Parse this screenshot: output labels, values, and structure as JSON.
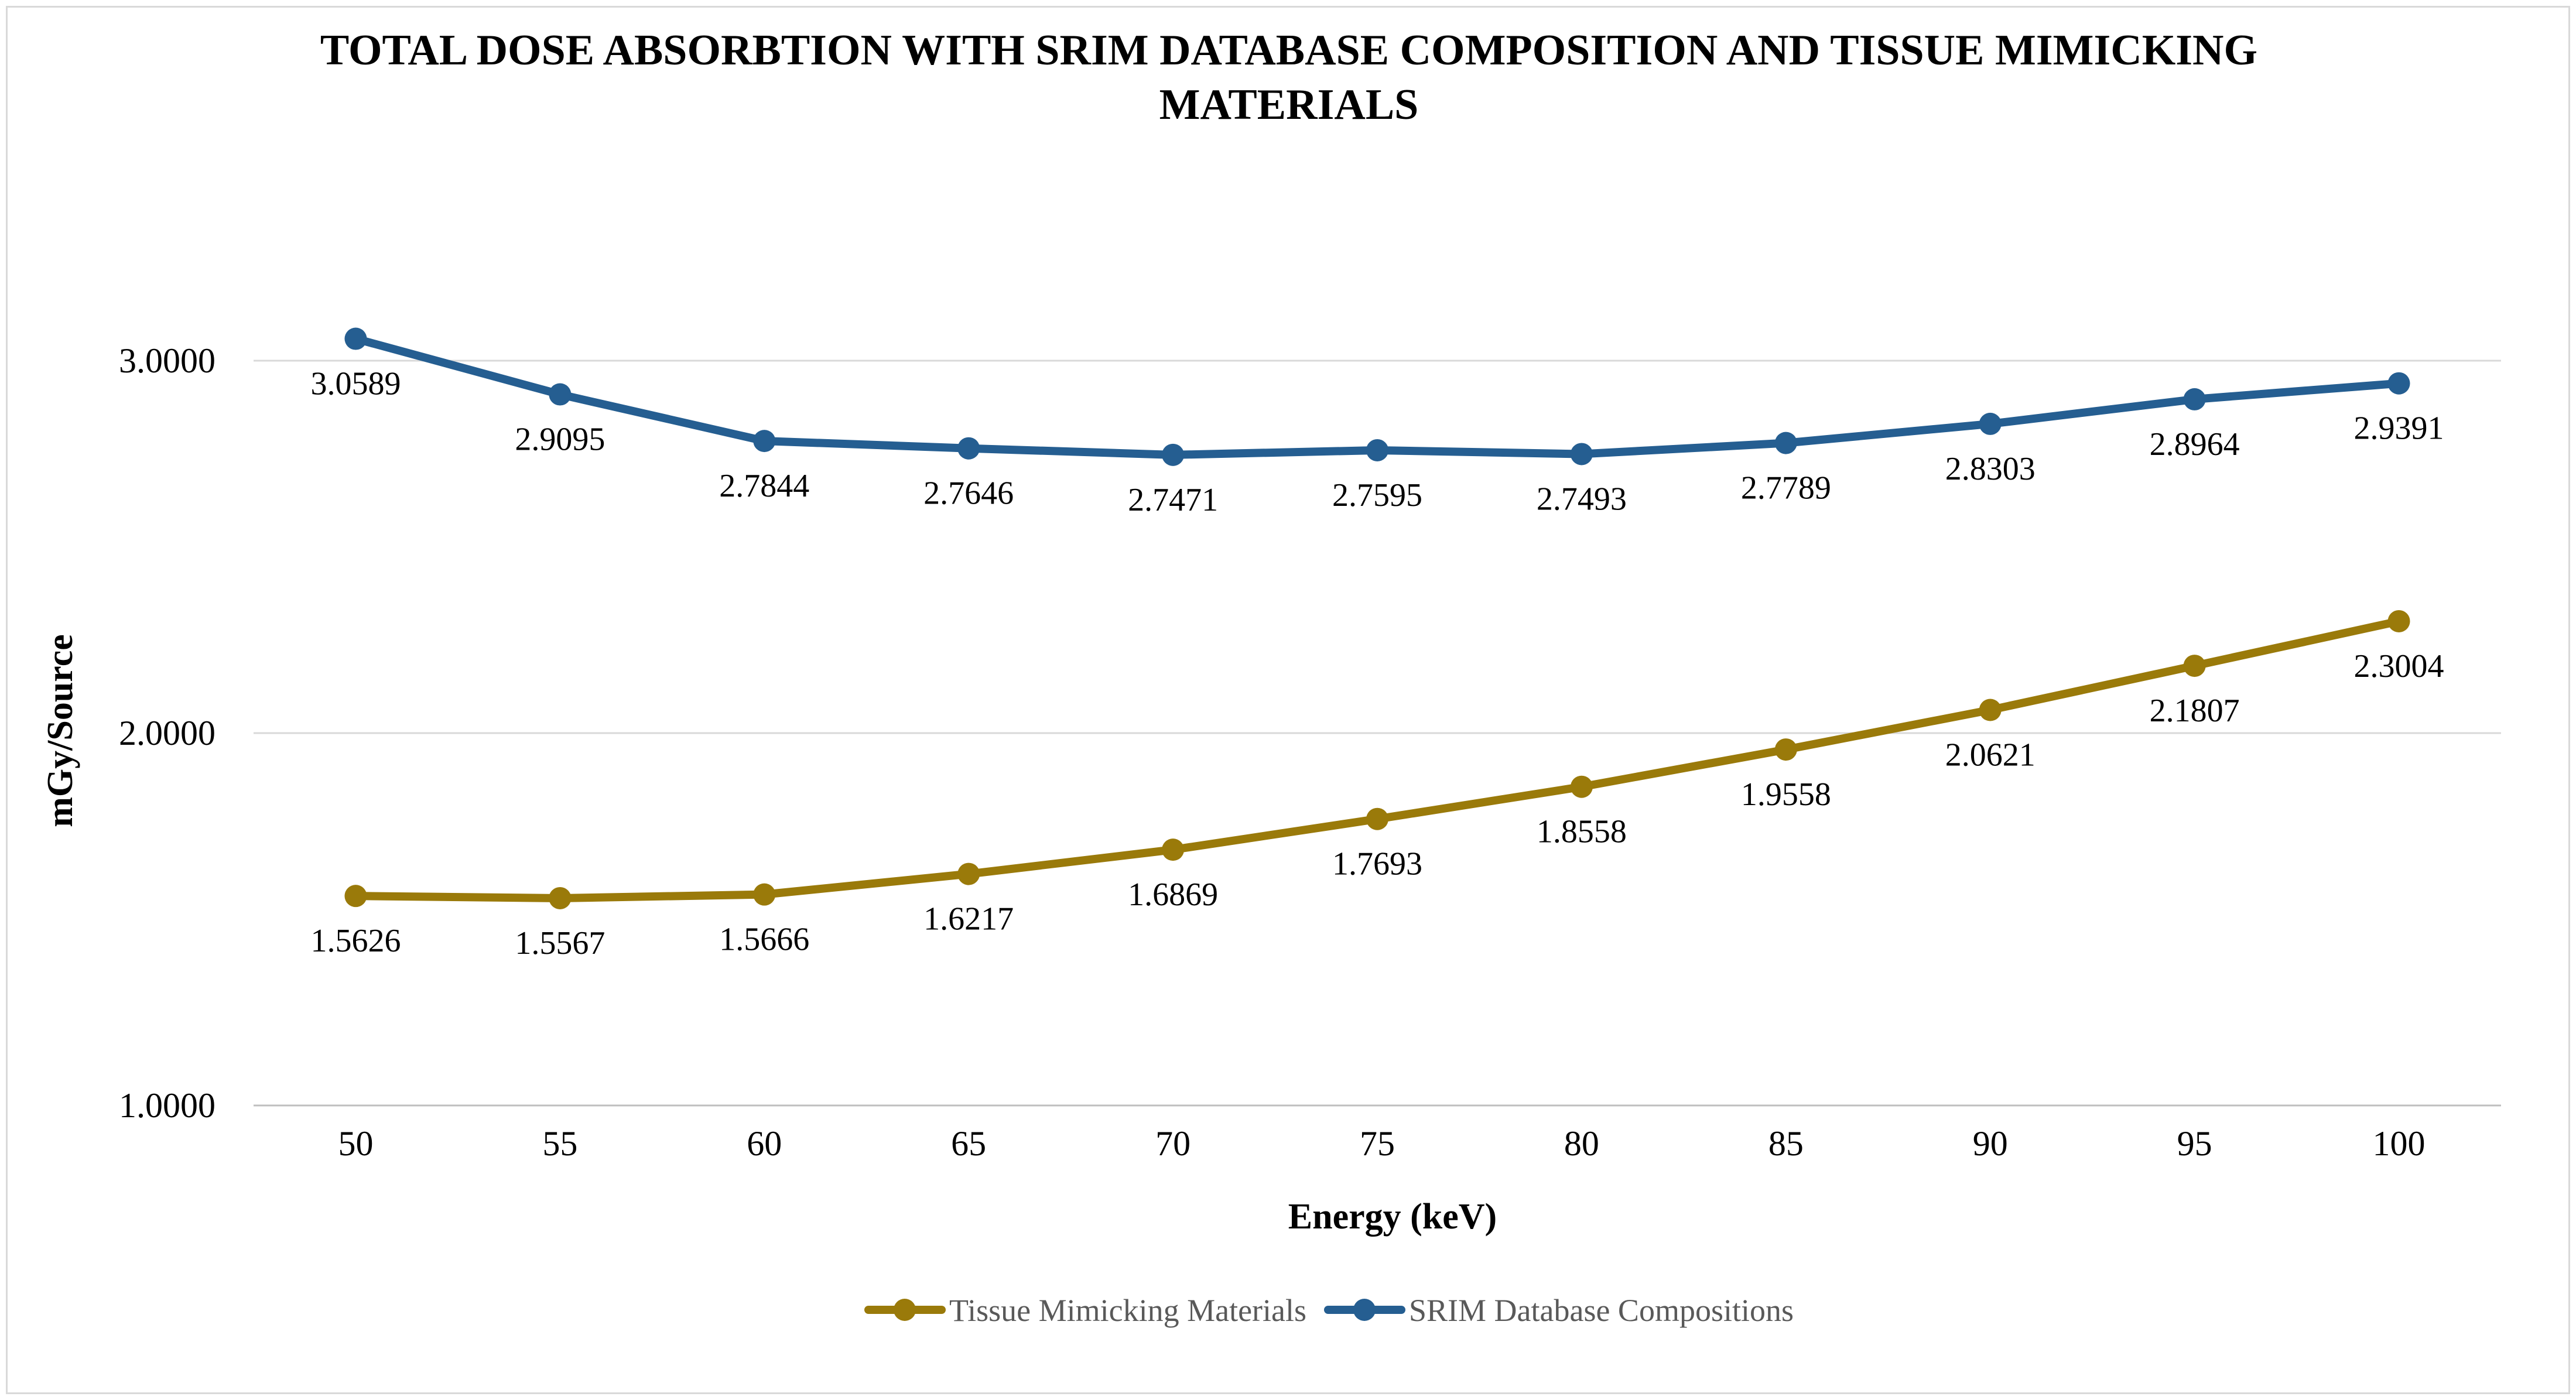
{
  "chart_data": {
    "type": "line",
    "title_lines": [
      "TOTAL DOSE ABSORBTION WITH SRIM DATABASE COMPOSITION AND TISSUE MIMICKING",
      "MATERIALS"
    ],
    "xlabel": "Energy (keV)",
    "ylabel": "mGy/Source",
    "categories": [
      "50",
      "55",
      "60",
      "65",
      "70",
      "75",
      "80",
      "85",
      "90",
      "95",
      "100"
    ],
    "ylim": [
      1.0,
      3.3
    ],
    "yticks": [
      {
        "value": 1.0,
        "label": "1.0000"
      },
      {
        "value": 2.0,
        "label": "2.0000"
      },
      {
        "value": 3.0,
        "label": "3.0000"
      }
    ],
    "grid": true,
    "legend_position": "bottom",
    "series": [
      {
        "name": "Tissue Mimicking Materials",
        "color": "#9a7a0a",
        "label_position": "below",
        "values": [
          1.5626,
          1.5567,
          1.5666,
          1.6217,
          1.6869,
          1.7693,
          1.8558,
          1.9558,
          2.0621,
          2.1807,
          2.3004
        ],
        "labels": [
          "1.5626",
          "1.5567",
          "1.5666",
          "1.6217",
          "1.6869",
          "1.7693",
          "1.8558",
          "1.9558",
          "2.0621",
          "2.1807",
          "2.3004"
        ]
      },
      {
        "name": "SRIM Database Compositions",
        "color": "#255e91",
        "label_position": "below",
        "values": [
          3.0589,
          2.9095,
          2.7844,
          2.7646,
          2.7471,
          2.7595,
          2.7493,
          2.7789,
          2.8303,
          2.8964,
          2.9391
        ],
        "labels": [
          "3.0589",
          "2.9095",
          "2.7844",
          "2.7646",
          "2.7471",
          "2.7595",
          "2.7493",
          "2.7789",
          "2.8303",
          "2.8964",
          "2.9391"
        ]
      }
    ]
  }
}
